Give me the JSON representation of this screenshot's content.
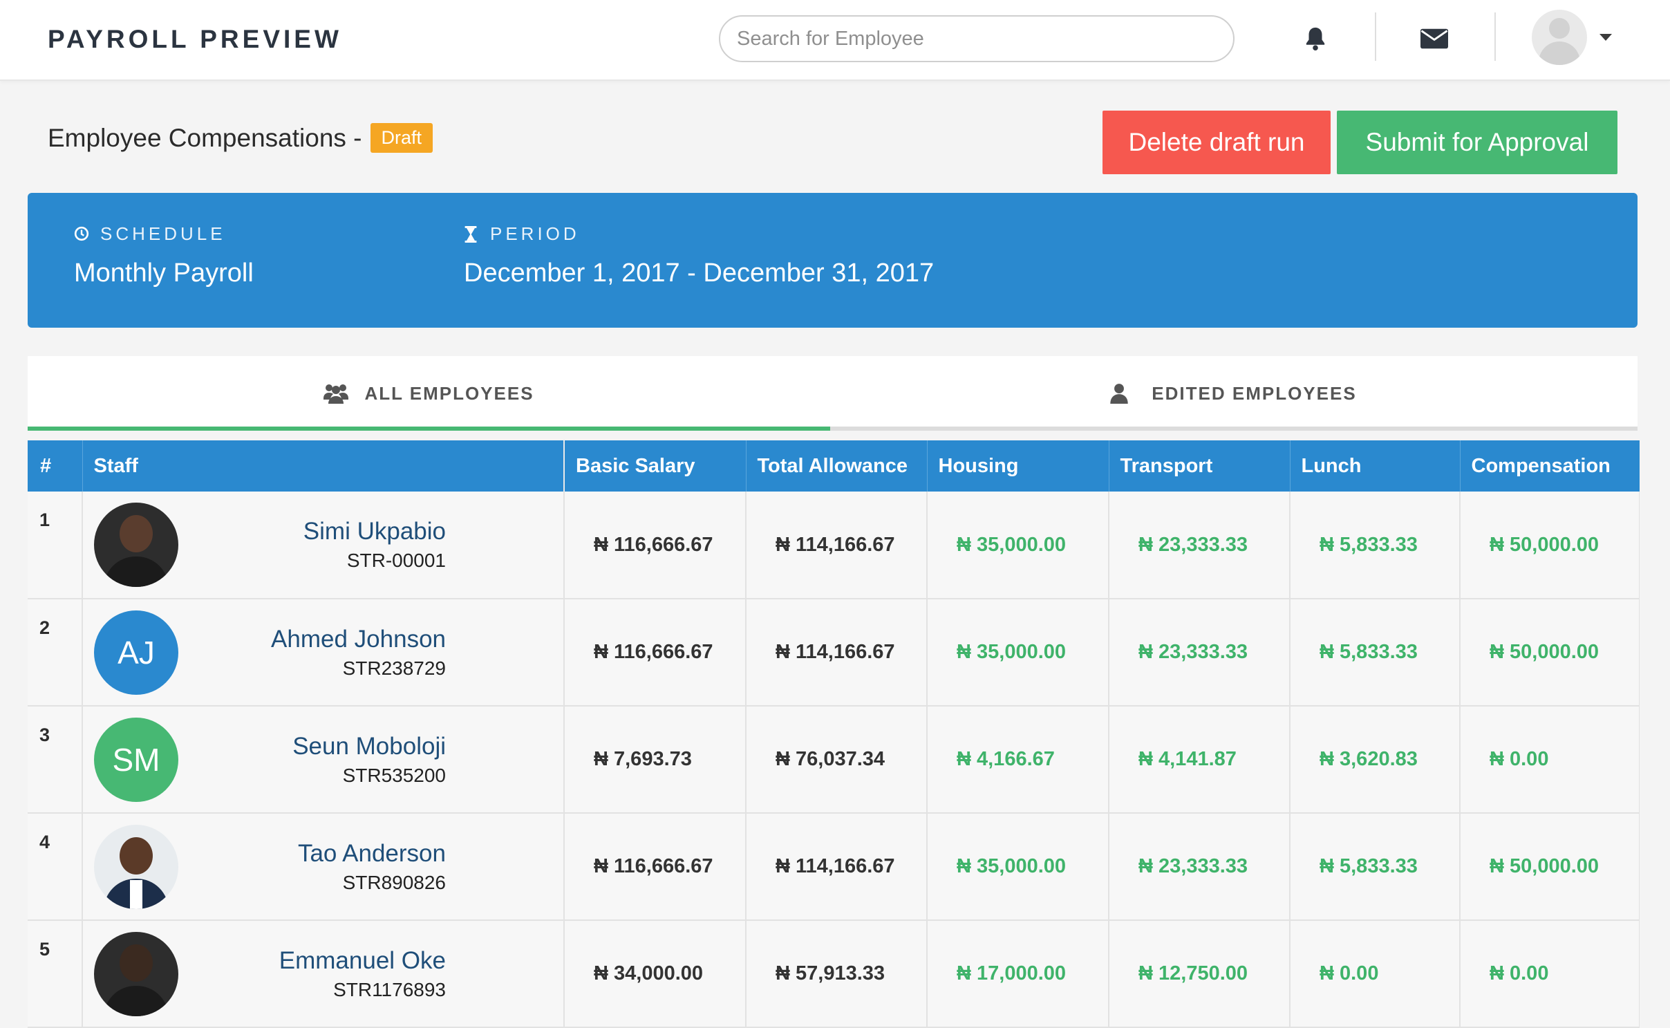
{
  "app": {
    "title": "PAYROLL PREVIEW"
  },
  "search": {
    "placeholder": "Search for Employee"
  },
  "header": {
    "title": "Employee Compensations -",
    "badge": "Draft",
    "delete_label": "Delete draft run",
    "submit_label": "Submit for Approval"
  },
  "schedule": {
    "label": "SCHEDULE",
    "value": "Monthly Payroll",
    "period_label": "PERIOD",
    "period_value": "December 1, 2017 - December 31, 2017"
  },
  "tabs": [
    {
      "label": "ALL EMPLOYEES",
      "icon": "users-icon",
      "active": true
    },
    {
      "label": "EDITED EMPLOYEES",
      "icon": "user-icon",
      "active": false
    }
  ],
  "table": {
    "columns": [
      "#",
      "Staff",
      "Basic Salary",
      "Total Allowance",
      "Housing",
      "Transport",
      "Lunch",
      "Compensation"
    ],
    "rows": [
      {
        "num": "1",
        "avatar_type": "photo",
        "initials": "",
        "name": "Simi Ukpabio",
        "id": "STR-00001",
        "basic": "₦ 116,666.67",
        "allowance": "₦ 114,166.67",
        "housing": "₦ 35,000.00",
        "transport": "₦ 23,333.33",
        "lunch": "₦ 5,833.33",
        "compensation": "₦ 50,000.00"
      },
      {
        "num": "2",
        "avatar_type": "initials",
        "initials": "AJ",
        "avatar_color": "#2a89cf",
        "name": "Ahmed Johnson",
        "id": "STR238729",
        "basic": "₦ 116,666.67",
        "allowance": "₦ 114,166.67",
        "housing": "₦ 35,000.00",
        "transport": "₦ 23,333.33",
        "lunch": "₦ 5,833.33",
        "compensation": "₦ 50,000.00"
      },
      {
        "num": "3",
        "avatar_type": "initials",
        "initials": "SM",
        "avatar_color": "#47b873",
        "name": "Seun Moboloji",
        "id": "STR535200",
        "basic": "₦ 7,693.73",
        "allowance": "₦ 76,037.34",
        "housing": "₦ 4,166.67",
        "transport": "₦ 4,141.87",
        "lunch": "₦ 3,620.83",
        "compensation": "₦ 0.00"
      },
      {
        "num": "4",
        "avatar_type": "photo",
        "initials": "",
        "name": "Tao Anderson",
        "id": "STR890826",
        "basic": "₦ 116,666.67",
        "allowance": "₦ 114,166.67",
        "housing": "₦ 35,000.00",
        "transport": "₦ 23,333.33",
        "lunch": "₦ 5,833.33",
        "compensation": "₦ 50,000.00"
      },
      {
        "num": "5",
        "avatar_type": "photo",
        "initials": "",
        "name": "Emmanuel Oke",
        "id": "STR1176893",
        "basic": "₦ 34,000.00",
        "allowance": "₦ 57,913.33",
        "housing": "₦ 17,000.00",
        "transport": "₦ 12,750.00",
        "lunch": "₦ 0.00",
        "compensation": "₦ 0.00"
      }
    ]
  },
  "colors": {
    "primary": "#2a89cf",
    "danger": "#f6584f",
    "success": "#47b873",
    "draft": "#f5a623",
    "money_green": "#3fb36a"
  }
}
